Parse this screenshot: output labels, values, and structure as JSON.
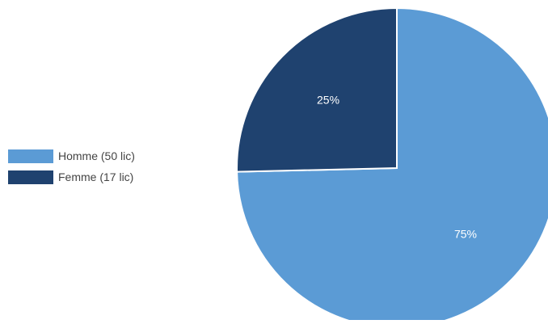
{
  "chart_data": {
    "type": "pie",
    "categories": [
      "Homme (50 lic)",
      "Femme (17 lic)"
    ],
    "values": [
      50,
      17
    ],
    "slice_labels": [
      "75%",
      "25%"
    ],
    "colors": [
      "#5b9bd5",
      "#1f426f"
    ],
    "title": "",
    "legend_position": "left"
  }
}
